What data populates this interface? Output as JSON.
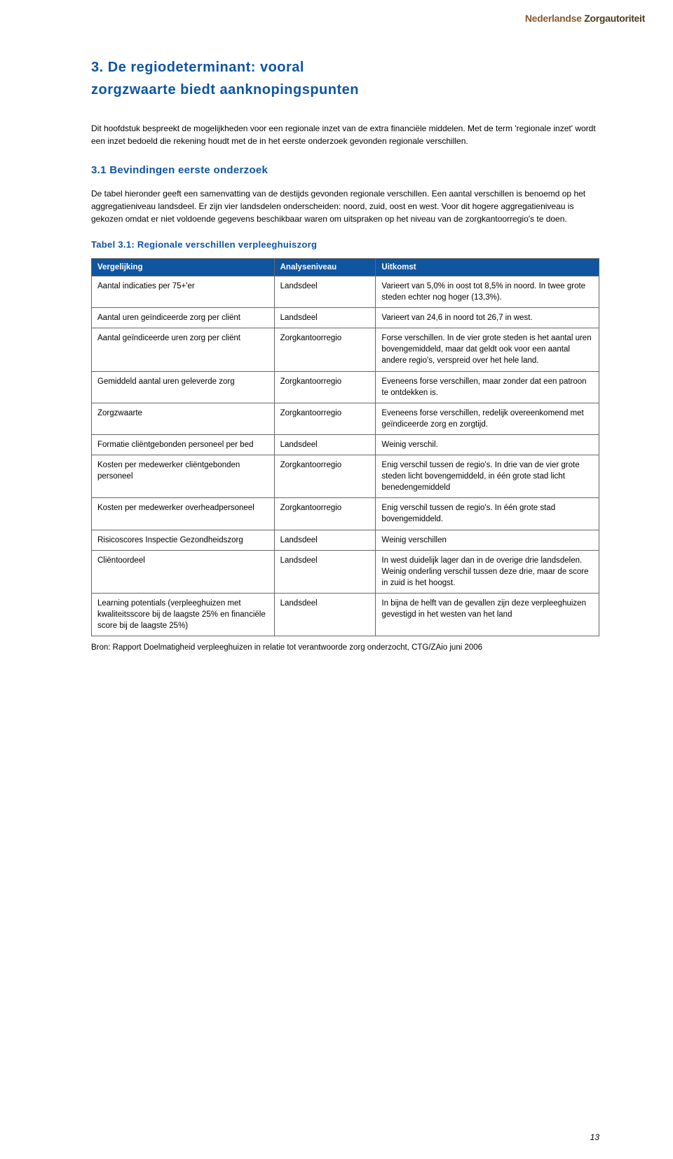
{
  "header": {
    "org_part1": "Nederlandse ",
    "org_part2": "Zorgautoriteit"
  },
  "chapter": {
    "number": "3. ",
    "title_line1": "De regiodeterminant: vooral",
    "title_line2": "zorgzwaarte biedt aanknopingspunten"
  },
  "intro_para": "Dit hoofdstuk bespreekt de mogelijkheden voor een regionale inzet van de extra financiële middelen. Met de term 'regionale inzet' wordt een inzet bedoeld die rekening houdt met de in het eerste onderzoek gevonden regionale verschillen.",
  "section": {
    "number": "3.1 ",
    "title": "Bevindingen eerste onderzoek"
  },
  "section_para": "De tabel hieronder geeft een samenvatting van de destijds gevonden regionale verschillen. Een aantal verschillen is benoemd op het aggregatieniveau landsdeel. Er zijn vier landsdelen onderscheiden: noord, zuid, oost en west. Voor dit hogere aggregatieniveau is gekozen omdat er niet voldoende gegevens beschikbaar waren om uitspraken op het niveau van de zorgkantoorregio's te doen.",
  "table_caption": "Tabel 3.1: Regionale verschillen verpleeghuiszorg",
  "table": {
    "headers": [
      "Vergelijking",
      "Analyseniveau",
      "Uitkomst"
    ],
    "rows": [
      [
        "Aantal indicaties per 75+'er",
        "Landsdeel",
        "Varieert van 5,0% in oost tot 8,5% in noord. In twee grote steden echter nog hoger (13,3%)."
      ],
      [
        "Aantal uren geïndiceerde zorg per cliënt",
        "Landsdeel",
        "Varieert van 24,6 in noord tot 26,7 in west."
      ],
      [
        "Aantal geïndiceerde uren zorg per cliënt",
        "Zorgkantoorregio",
        "Forse verschillen. In de vier grote steden is het aantal uren bovengemiddeld, maar dat geldt ook voor een aantal andere regio's, verspreid over het hele land."
      ],
      [
        "Gemiddeld aantal uren geleverde zorg",
        "Zorgkantoorregio",
        "Eveneens forse verschillen, maar zonder dat een patroon te ontdekken is."
      ],
      [
        "Zorgzwaarte",
        "Zorgkantoorregio",
        "Eveneens forse verschillen, redelijk overeenkomend met geïndiceerde zorg en zorgtijd."
      ],
      [
        "Formatie cliëntgebonden personeel per bed",
        "Landsdeel",
        "Weinig verschil."
      ],
      [
        "Kosten per medewerker cliëntgebonden personeel",
        "Zorgkantoorregio",
        "Enig verschil tussen de regio's. In drie van de vier grote steden licht bovengemiddeld, in één grote stad licht benedengemiddeld"
      ],
      [
        "Kosten per medewerker overheadpersoneel",
        "Zorgkantoorregio",
        "Enig verschil tussen de regio's. In één grote stad bovengemiddeld."
      ],
      [
        "Risicoscores Inspectie Gezondheidszorg",
        "Landsdeel",
        "Weinig verschillen"
      ],
      [
        "Cliëntoordeel",
        "Landsdeel",
        "In west duidelijk lager dan in de overige drie landsdelen. Weinig onderling verschil tussen deze drie, maar de score in zuid is het hoogst."
      ],
      [
        "Learning potentials (verpleeghuizen met kwaliteitsscore bij de laagste 25% en financiële score bij de laagste 25%)",
        "Landsdeel",
        "In bijna de helft van de gevallen zijn deze verpleeghuizen gevestigd in het westen van het land"
      ]
    ]
  },
  "source": "Bron: Rapport Doelmatigheid verpleeghuizen in relatie tot verantwoorde zorg onderzocht, CTG/ZAio juni 2006",
  "page_number": "13",
  "colors": {
    "heading_blue": "#0f55a0",
    "header_bg": "#0f55a0",
    "header_text": "#ffffff",
    "border": "#666666",
    "body_text": "#000000",
    "org_ned": "#8a5a2e",
    "org_zorg": "#4f3a1e"
  }
}
